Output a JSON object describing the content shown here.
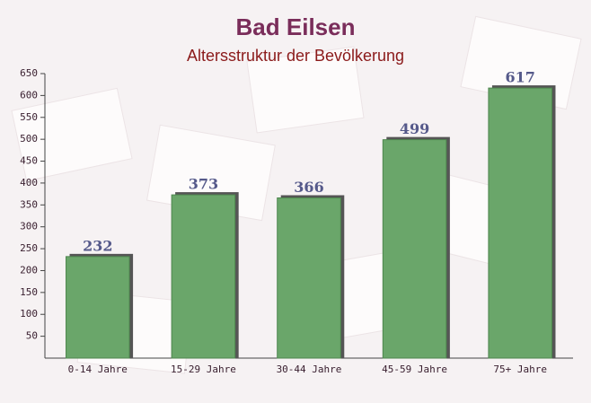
{
  "chart_data": {
    "type": "bar",
    "title": "Bad Eilsen",
    "subtitle": "Altersstruktur der Bevölkerung",
    "categories": [
      "0-14 Jahre",
      "15-29 Jahre",
      "30-44 Jahre",
      "45-59 Jahre",
      "75+ Jahre"
    ],
    "values": [
      232,
      373,
      366,
      499,
      617
    ],
    "color": "#6aa66a",
    "ylim": [
      0,
      650
    ],
    "yticks": [
      50,
      100,
      150,
      200,
      250,
      300,
      350,
      400,
      450,
      500,
      550,
      600,
      650
    ],
    "grid": false
  }
}
